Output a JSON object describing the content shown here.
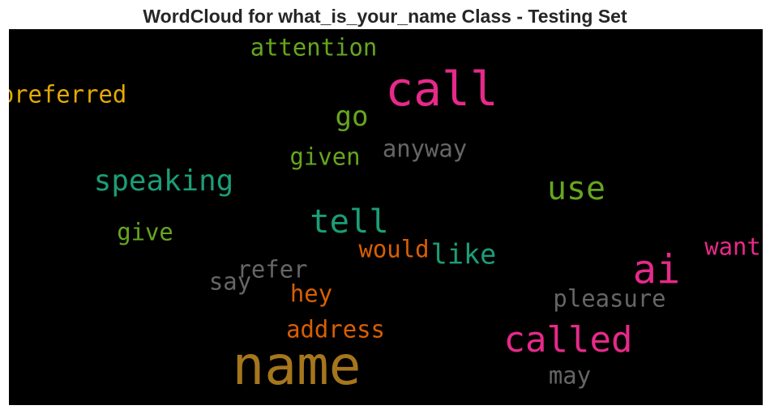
{
  "title": "WordCloud for what_is_your_name Class - Testing Set",
  "chart_data": {
    "type": "wordcloud",
    "title": "WordCloud for what_is_your_name Class - Testing Set",
    "background": "#000000",
    "colormap": "Dark2",
    "words": [
      {
        "text": "name",
        "weight": 1.0,
        "color": "#a6761d"
      },
      {
        "text": "call",
        "weight": 0.86,
        "color": "#e7298a"
      },
      {
        "text": "ai",
        "weight": 0.7,
        "color": "#e7298a"
      },
      {
        "text": "called",
        "weight": 0.62,
        "color": "#e7298a"
      },
      {
        "text": "tell",
        "weight": 0.56,
        "color": "#1b9e77"
      },
      {
        "text": "use",
        "weight": 0.55,
        "color": "#66a61e"
      },
      {
        "text": "speaking",
        "weight": 0.48,
        "color": "#1b9e77"
      },
      {
        "text": "go",
        "weight": 0.45,
        "color": "#66a61e"
      },
      {
        "text": "like",
        "weight": 0.44,
        "color": "#1b9e77"
      },
      {
        "text": "preferred",
        "weight": 0.36,
        "color": "#e6ab02"
      },
      {
        "text": "attention",
        "weight": 0.36,
        "color": "#66a61e"
      },
      {
        "text": "given",
        "weight": 0.36,
        "color": "#66a61e"
      },
      {
        "text": "anyway",
        "weight": 0.36,
        "color": "#666666"
      },
      {
        "text": "give",
        "weight": 0.36,
        "color": "#66a61e"
      },
      {
        "text": "would",
        "weight": 0.36,
        "color": "#d95f02"
      },
      {
        "text": "want",
        "weight": 0.36,
        "color": "#e7298a"
      },
      {
        "text": "refer",
        "weight": 0.36,
        "color": "#666666"
      },
      {
        "text": "say",
        "weight": 0.36,
        "color": "#666666"
      },
      {
        "text": "hey",
        "weight": 0.36,
        "color": "#d95f02"
      },
      {
        "text": "pleasure",
        "weight": 0.36,
        "color": "#666666"
      },
      {
        "text": "address",
        "weight": 0.36,
        "color": "#d95f02"
      },
      {
        "text": "may",
        "weight": 0.36,
        "color": "#666666"
      }
    ]
  }
}
